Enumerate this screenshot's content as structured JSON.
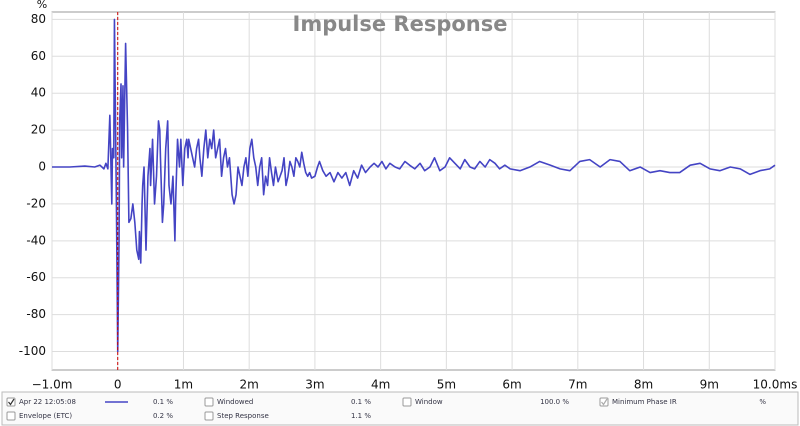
{
  "chart_data": {
    "type": "line",
    "title": "Impulse Response",
    "y_label": "%",
    "x": [
      -1.0,
      -0.73,
      -0.5,
      -0.35,
      -0.27,
      -0.21,
      -0.18,
      -0.15,
      -0.12,
      -0.09,
      -0.08,
      -0.06,
      -0.05,
      -0.02,
      0,
      0.02,
      0.03,
      0.05,
      0.06,
      0.08,
      0.09,
      0.12,
      0.15,
      0.17,
      0.2,
      0.23,
      0.26,
      0.29,
      0.32,
      0.33,
      0.35,
      0.37,
      0.38,
      0.4,
      0.43,
      0.46,
      0.49,
      0.5,
      0.53,
      0.56,
      0.59,
      0.62,
      0.64,
      0.65,
      0.68,
      0.7,
      0.73,
      0.76,
      0.78,
      0.81,
      0.84,
      0.87,
      0.88,
      0.91,
      0.94,
      0.96,
      0.99,
      1.02,
      1.05,
      1.07,
      1.08,
      1.11,
      1.14,
      1.17,
      1.2,
      1.23,
      1.25,
      1.28,
      1.31,
      1.34,
      1.37,
      1.4,
      1.43,
      1.46,
      1.49,
      1.52,
      1.55,
      1.58,
      1.61,
      1.64,
      1.67,
      1.7,
      1.74,
      1.77,
      1.8,
      1.83,
      1.86,
      1.89,
      1.92,
      1.95,
      1.98,
      2.01,
      2.04,
      2.07,
      2.1,
      2.13,
      2.16,
      2.19,
      2.22,
      2.25,
      2.28,
      2.31,
      2.34,
      2.37,
      2.4,
      2.44,
      2.47,
      2.5,
      2.53,
      2.56,
      2.59,
      2.62,
      2.65,
      2.68,
      2.71,
      2.74,
      2.77,
      2.8,
      2.83,
      2.86,
      2.89,
      2.92,
      2.95,
      3.0,
      3.04,
      3.07,
      3.12,
      3.17,
      3.23,
      3.29,
      3.35,
      3.41,
      3.47,
      3.53,
      3.59,
      3.65,
      3.71,
      3.77,
      3.84,
      3.9,
      3.96,
      4.02,
      4.08,
      4.14,
      4.22,
      4.29,
      4.37,
      4.44,
      4.52,
      4.6,
      4.67,
      4.75,
      4.82,
      4.9,
      4.98,
      5.05,
      5.13,
      5.21,
      5.28,
      5.36,
      5.43,
      5.51,
      5.59,
      5.66,
      5.74,
      5.81,
      5.89,
      5.97,
      6.12,
      6.27,
      6.42,
      6.58,
      6.73,
      6.88,
      7.03,
      7.18,
      7.34,
      7.49,
      7.64,
      7.79,
      7.95,
      8.1,
      8.25,
      8.4,
      8.55,
      8.71,
      8.86,
      9.01,
      9.16,
      9.32,
      9.47,
      9.62,
      9.77,
      9.92,
      10.0
    ],
    "series": [
      {
        "name": "Apr 22 12:05:08",
        "legend_value": "0.1 %",
        "color": "#4444c4",
        "values": [
          0,
          0,
          0.5,
          0,
          1,
          -1,
          2,
          -1,
          28,
          -20,
          10,
          5,
          80,
          -20,
          -100,
          -40,
          25,
          45,
          5,
          44,
          0,
          67,
          20,
          -30,
          -28,
          -20,
          -30,
          -45,
          -50,
          -35,
          -52,
          -20,
          -10,
          0,
          -45,
          -5,
          10,
          -10,
          15,
          -20,
          -5,
          25,
          20,
          5,
          -30,
          -20,
          10,
          25,
          -10,
          -20,
          -5,
          -40,
          -20,
          15,
          0,
          15,
          -10,
          10,
          15,
          5,
          15,
          10,
          5,
          0,
          10,
          15,
          5,
          -5,
          10,
          20,
          5,
          15,
          10,
          20,
          5,
          10,
          15,
          -5,
          5,
          10,
          0,
          5,
          -15,
          -20,
          -15,
          0,
          -5,
          -10,
          0,
          5,
          -5,
          10,
          15,
          5,
          0,
          -10,
          0,
          5,
          -15,
          -5,
          -10,
          5,
          -3,
          -10,
          0,
          -8,
          -5,
          -2,
          5,
          -10,
          -5,
          3,
          0,
          -5,
          5,
          3,
          0,
          8,
          2,
          -3,
          -5,
          -3,
          -6,
          -5,
          0,
          3,
          -2,
          -5,
          -3,
          -8,
          -3,
          -6,
          -3,
          -10,
          -2,
          -6,
          1,
          -3,
          0,
          2,
          0,
          3,
          -1,
          2,
          0,
          -1,
          3,
          1,
          -1,
          2,
          -2,
          0,
          5,
          -2,
          0,
          5,
          2,
          -1,
          4,
          0,
          -1,
          3,
          0,
          4,
          2,
          -1,
          1,
          -1,
          -2,
          0,
          3,
          1,
          -1,
          -2,
          3,
          4,
          0,
          4,
          3,
          -2,
          0,
          -3,
          -2,
          -3,
          -3,
          1,
          2,
          -1,
          -2,
          0,
          -1,
          -4,
          -2,
          -1,
          1
        ]
      }
    ],
    "xlim": [
      -1,
      10
    ],
    "ylim": [
      -110,
      84
    ],
    "xticks": [
      {
        "value": -1,
        "label": "−1.0m"
      },
      0,
      {
        "value": 1,
        "label": "1m"
      },
      {
        "value": 2,
        "label": "2m"
      },
      {
        "value": 3,
        "label": "3m"
      },
      {
        "value": 4,
        "label": "4m"
      },
      {
        "value": 5,
        "label": "5m"
      },
      {
        "value": 6,
        "label": "6m"
      },
      {
        "value": 7,
        "label": "7m"
      },
      {
        "value": 8,
        "label": "8m"
      },
      {
        "value": 9,
        "label": "9m"
      },
      {
        "value": 10,
        "label": "10.0ms"
      }
    ],
    "yticks": [
      -100,
      -80,
      -60,
      -40,
      -20,
      0,
      20,
      40,
      60,
      80
    ],
    "grid": true,
    "marker_x": 0,
    "marker_color": "#cc0000",
    "controls": [
      {
        "label": "Windowed",
        "value": "0.1 %",
        "checked": false
      },
      {
        "label": "Window",
        "value": "100.0 %",
        "checked": false
      },
      {
        "label": "Minimum Phase IR",
        "value": "%",
        "checked": true
      },
      {
        "label": "Envelope (ETC)",
        "value": "0.2 %",
        "checked": false
      },
      {
        "label": "Step Response",
        "value": "1.1 %",
        "checked": false
      }
    ]
  }
}
